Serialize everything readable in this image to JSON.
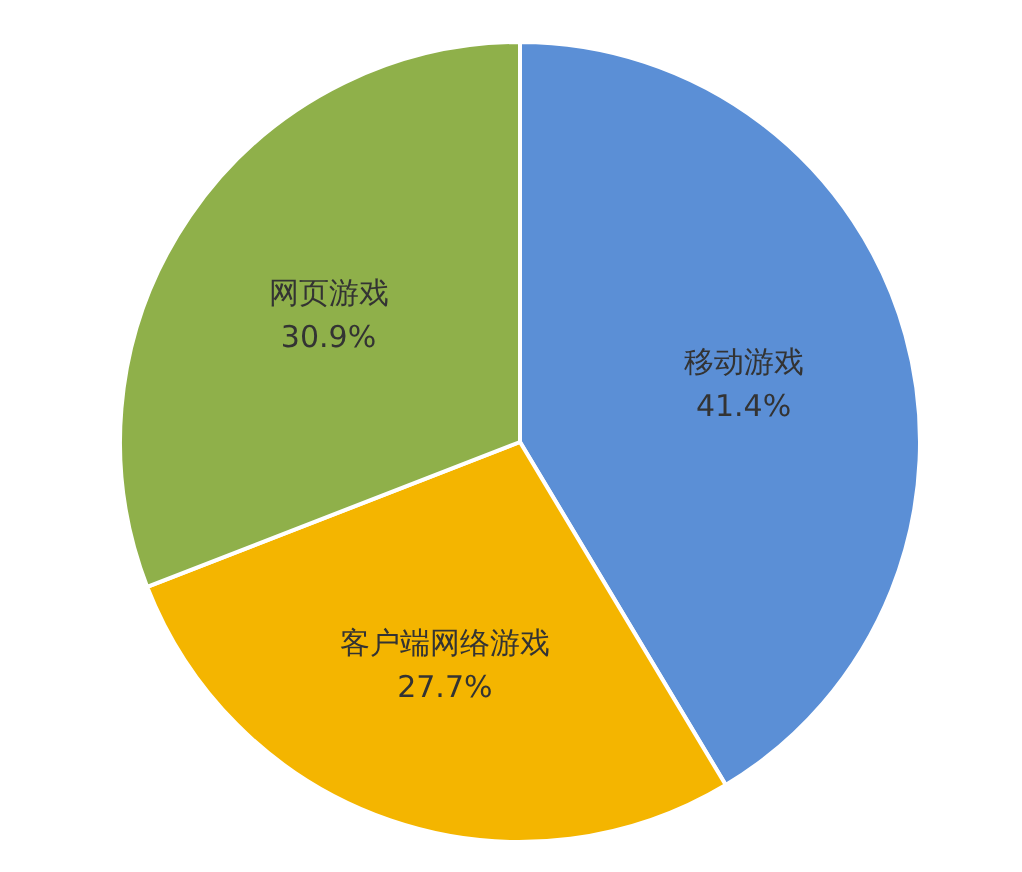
{
  "chart_data": {
    "type": "pie",
    "categories": [
      "移动游戏",
      "客户端网络游戏",
      "网页游戏"
    ],
    "values": [
      41.4,
      27.7,
      30.9
    ],
    "colors": [
      "#5b8fd6",
      "#f4b500",
      "#8fb04a"
    ],
    "value_labels": [
      "41.4%",
      "27.7%",
      "30.9%"
    ]
  }
}
